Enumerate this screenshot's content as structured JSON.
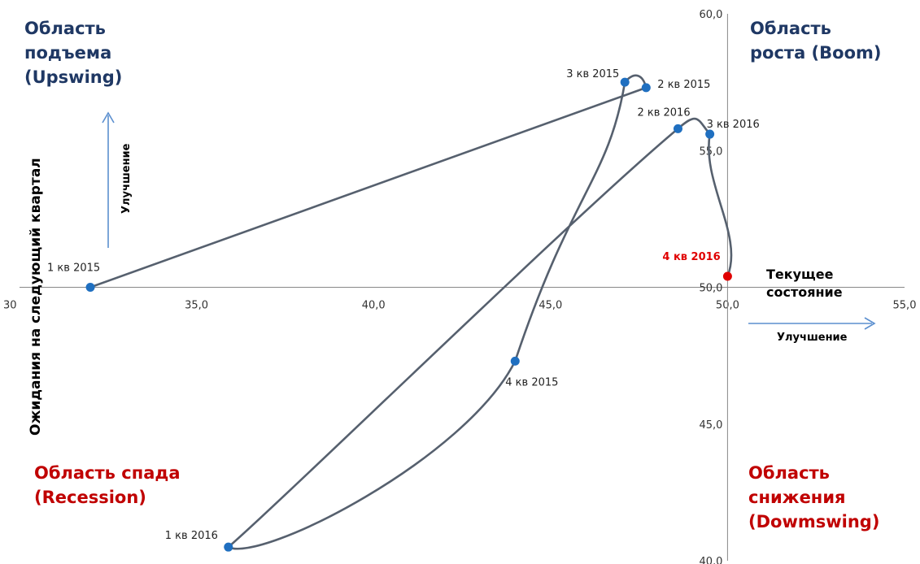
{
  "chart_data": {
    "type": "scatter",
    "title": "",
    "xlabel": "Текущее\nсостояние",
    "ylabel": "Ожидания на следующий квартал",
    "xlim": [
      30,
      55
    ],
    "ylim": [
      40,
      60
    ],
    "x_ticks": [
      "30",
      "35,0",
      "40,0",
      "45,0",
      "50,0",
      "55,0"
    ],
    "y_ticks": [
      "40,0",
      "45,0",
      "50,0",
      "55,0",
      "60,0"
    ],
    "points": [
      {
        "label": "1 кв 2015",
        "x": 32.0,
        "y": 50.0,
        "color": "#1f6fc0"
      },
      {
        "label": "2 кв 2015",
        "x": 47.7,
        "y": 57.3,
        "color": "#1f6fc0"
      },
      {
        "label": "3 кв 2015",
        "x": 47.1,
        "y": 57.5,
        "color": "#1f6fc0"
      },
      {
        "label": "4 кв 2015",
        "x": 44.0,
        "y": 47.3,
        "color": "#1f6fc0"
      },
      {
        "label": "1 кв 2016",
        "x": 35.9,
        "y": 40.5,
        "color": "#1f6fc0"
      },
      {
        "label": "2 кв 2016",
        "x": 48.6,
        "y": 55.8,
        "color": "#1f6fc0"
      },
      {
        "label": "3 кв 2016",
        "x": 49.5,
        "y": 55.6,
        "color": "#1f6fc0"
      },
      {
        "label": "4 кв 2016",
        "x": 50.0,
        "y": 50.4,
        "color": "#e00000",
        "highlight": true
      }
    ],
    "line_color": "#56606e",
    "grid": false
  },
  "regions": {
    "upswing": "Область\nподъема\n(Upswing)",
    "boom": "Область\nроста (Boom)",
    "recession": "Область спада\n(Recession)",
    "downswing": "Область\nснижения\n(Dowmswing)"
  },
  "colors": {
    "upper_regions": "#1f3864",
    "lower_regions": "#c00000",
    "arrows": "#5b8fcf"
  },
  "improvement_x": "Улучшение",
  "improvement_y": "Улучшение"
}
